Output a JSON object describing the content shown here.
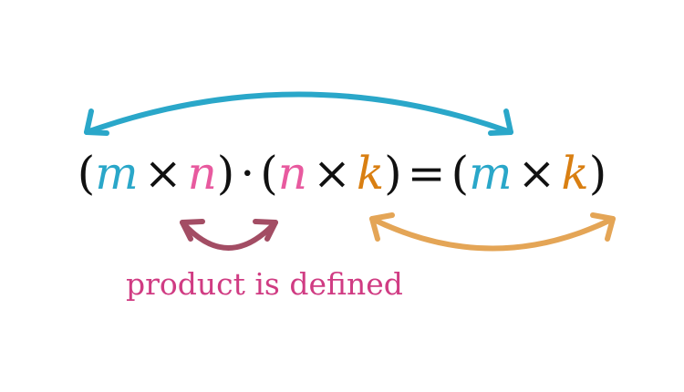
{
  "colors": {
    "m": "#2aa7c9",
    "n": "#e85a9f",
    "k": "#d97f12",
    "black": "#111111",
    "arrow_top": "#2aa7c9",
    "arrow_inner": "#a34d64",
    "arrow_right": "#e4a556",
    "caption": "#d03c83"
  },
  "equation": {
    "lp1": "(",
    "m1": "m",
    "times1": "×",
    "n1": "n",
    "rp1": ")",
    "dot": "·",
    "lp2": "(",
    "n2": "n",
    "times2": "×",
    "k1": "k",
    "rp2": ")",
    "eq": "=",
    "lp3": "(",
    "m2": "m",
    "times3": "×",
    "k2": "k",
    "rp3": ")"
  },
  "caption": "product is defined"
}
